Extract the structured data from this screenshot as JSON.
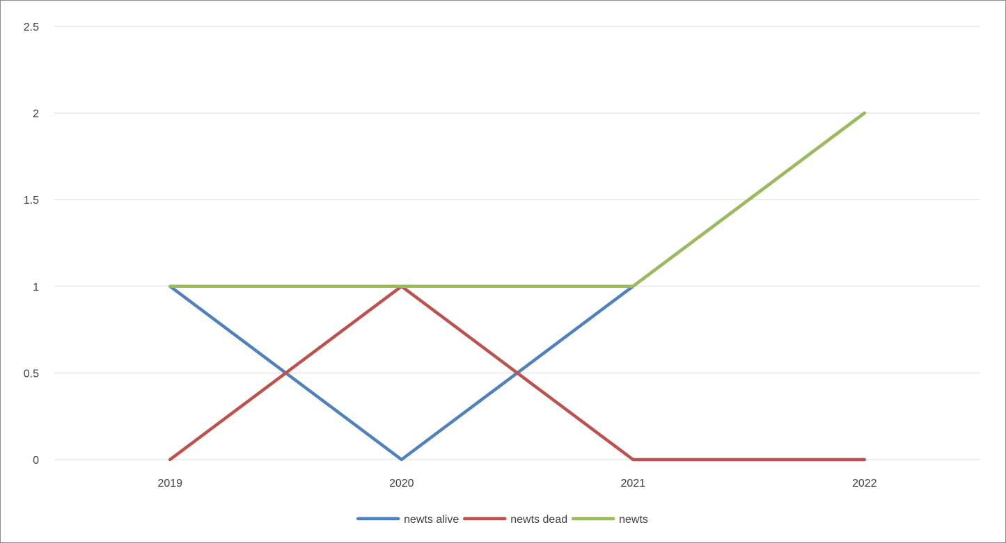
{
  "chart_data": {
    "type": "line",
    "categories": [
      "2019",
      "2020",
      "2021",
      "2022"
    ],
    "ylim": [
      0,
      2.5
    ],
    "yticks": [
      0,
      0.5,
      1,
      1.5,
      2,
      2.5
    ],
    "ytick_labels": [
      "0",
      "0.5",
      "1",
      "1.5",
      "2",
      "2.5"
    ],
    "grid": true,
    "legend_position": "bottom",
    "series": [
      {
        "name": "newts alive",
        "values": [
          1,
          0,
          1,
          2
        ],
        "color": "#4f81bd"
      },
      {
        "name": "newts dead",
        "values": [
          0,
          1,
          0,
          0
        ],
        "color": "#c0504d"
      },
      {
        "name": "newts",
        "values": [
          1,
          1,
          1,
          2
        ],
        "color": "#9bbb59"
      }
    ]
  }
}
